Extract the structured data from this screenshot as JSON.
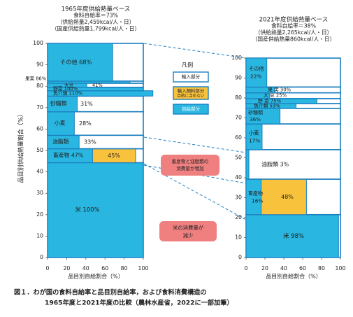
{
  "chart_data": {
    "type": "bar",
    "title_1965": [
      "1965年度供給熱量ベース",
      "食料自給率＝73%",
      "（供給熱量2,459kcal/人・日）",
      "（国産供給熱量1,799kcal/人・日）"
    ],
    "title_2021": [
      "2021年度供給熱量ベース",
      "食料自給率＝38%",
      "（供給熱量2,265kcal/人・日）",
      "（国産供給熱量860kcal/人・日）"
    ],
    "ylabel": "品目別供給熱量割合（%）",
    "xlabel": "品目別自給割合（%）",
    "xlim": [
      0,
      100
    ],
    "ylim": [
      0,
      100
    ],
    "x_ticks": [
      "0",
      "20",
      "40",
      "60",
      "80",
      "100"
    ],
    "y_ticks": [
      "0",
      "10",
      "20",
      "30",
      "40",
      "50",
      "60",
      "70",
      "80",
      "90",
      "100"
    ],
    "legend_title": "凡例",
    "legend": [
      {
        "key": "import",
        "label": "輸入部分",
        "color": "#ffffff"
      },
      {
        "key": "feed",
        "label": "輸入飼料部分",
        "label2": "自給に含めない",
        "color": "#f9c23c"
      },
      {
        "key": "self",
        "label": "自給部分",
        "color": "#29b6e0"
      }
    ],
    "annotations": [
      "畜産物と油脂類の",
      "消費量が増加",
      "米の消費量が",
      "減少"
    ],
    "colors": {
      "self": "#29b6e0",
      "feed": "#f9c23c",
      "import": "#ffffff",
      "edge": "#1a7fc0",
      "callout": "#f08080"
    },
    "series_1965": [
      {
        "name": "米",
        "label": "米 100%",
        "share": 44.3,
        "self": 100,
        "feed": 0
      },
      {
        "name": "畜産物",
        "label": "畜産物 47%",
        "feed_label": "45%",
        "share": 6.5,
        "self": 47,
        "feed": 45
      },
      {
        "name": "油脂類",
        "label": "油脂類",
        "value_label": "33%",
        "share": 6.3,
        "self": 33,
        "feed": 0
      },
      {
        "name": "小麦",
        "label": "小麦",
        "value_label": "28%",
        "share": 11.0,
        "self": 28,
        "feed": 0
      },
      {
        "name": "砂糖類",
        "label": "砂糖類",
        "value_label": "31%",
        "share": 7.3,
        "self": 31,
        "feed": 0
      },
      {
        "name": "魚介類",
        "label": "魚介類 110%",
        "share": 2.5,
        "self": 110,
        "feed": 0
      },
      {
        "name": "野菜",
        "label": "野菜 100%",
        "share": 1.6,
        "self": 100,
        "feed": 0
      },
      {
        "name": "大豆",
        "label": "大豆",
        "value_label": "41%",
        "share": 1.9,
        "self": 41,
        "feed": 0
      },
      {
        "name": "果実",
        "label": "果実 86%",
        "share": 1.0,
        "self": 86,
        "feed": 0
      },
      {
        "name": "その他",
        "label": "その他 68%",
        "share": 17.6,
        "self": 68,
        "feed": 0
      }
    ],
    "series_2021": [
      {
        "name": "米",
        "label": "米 98%",
        "share": 21.5,
        "self": 98,
        "feed": 0
      },
      {
        "name": "畜産物",
        "label": "畜産物",
        "label2": "16%",
        "feed_label": "48%",
        "share": 17.8,
        "self": 16,
        "feed": 48
      },
      {
        "name": "油脂類",
        "label": "油脂類 3%",
        "share": 14.8,
        "self": 3,
        "feed": 0
      },
      {
        "name": "小麦",
        "label": "小麦",
        "label2": "17%",
        "share": 12.9,
        "self": 17,
        "feed": 0
      },
      {
        "name": "砂糖類",
        "label": "砂糖類",
        "label2": "36%",
        "share": 7.8,
        "self": 36,
        "feed": 0
      },
      {
        "name": "魚介類",
        "label": "魚介類 53%",
        "share": 2.4,
        "self": 53,
        "feed": 0
      },
      {
        "name": "野菜",
        "label": "野 菜 75%",
        "share": 2.5,
        "self": 75,
        "feed": 0
      },
      {
        "name": "大豆",
        "label": "大 豆 25%",
        "share": 2.9,
        "self": 25,
        "feed": 0
      },
      {
        "name": "果実",
        "label": "果 実 30%",
        "share": 2.9,
        "self": 30,
        "feed": 0
      },
      {
        "name": "その他",
        "label": "その他",
        "label2": "22%",
        "share": 14.5,
        "self": 22,
        "feed": 0
      }
    ]
  },
  "caption": {
    "line1": "図１．わが国の食料自給率と品目別自給率，および食料消費構造の",
    "line2": "1965年度と2021年度の比較（農林水産省，2022に一部加筆）"
  }
}
